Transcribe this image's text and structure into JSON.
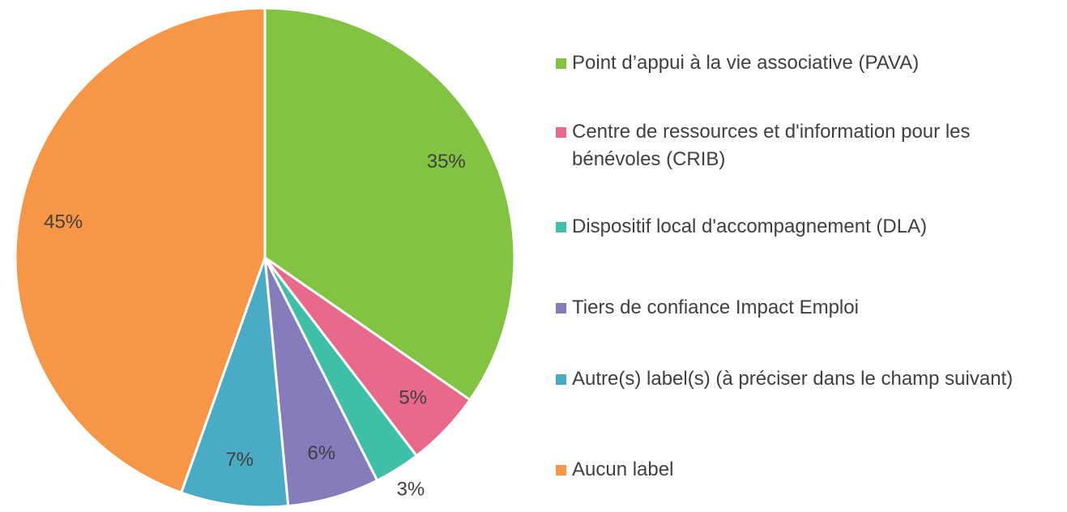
{
  "chart_data": {
    "type": "pie",
    "categories": [
      "Point d’appui à la vie associative (PAVA)",
      "Centre de ressources et d'information pour les bénévoles (CRIB)",
      "Dispositif local d'accompagnement (DLA)",
      "Tiers de confiance Impact Emploi",
      "Autre(s) label(s) (à préciser dans le champ suivant)",
      "Aucun label"
    ],
    "values": [
      35,
      5,
      3,
      6,
      7,
      45
    ],
    "value_labels": [
      "35%",
      "5%",
      "3%",
      "6%",
      "7%",
      "45%"
    ],
    "colors": [
      "#82c341",
      "#e8698a",
      "#3ebfa8",
      "#847cbb",
      "#4aabc4",
      "#f79646"
    ],
    "legend": "right"
  }
}
